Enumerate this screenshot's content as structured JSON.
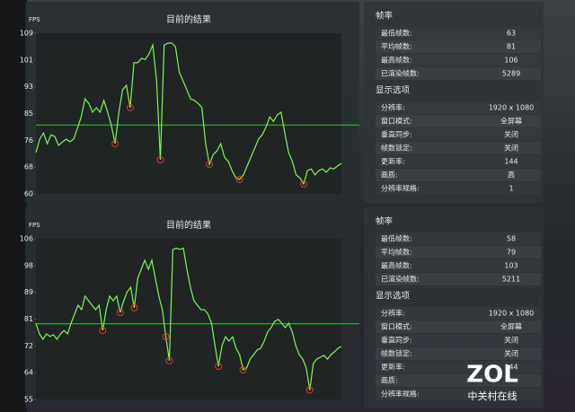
{
  "chart_data": [
    {
      "type": "line",
      "title": "目前的结果",
      "y_label": "FPS",
      "ylim": [
        60,
        109
      ],
      "yticks": [
        60,
        {
          "value": 68.17,
          "label": "68"
        },
        {
          "value": 76.33,
          "label": "76"
        },
        {
          "value": 84.5,
          "label": "85"
        },
        {
          "value": 92.67,
          "label": "93"
        },
        {
          "value": 100.83,
          "label": "101"
        },
        109
      ],
      "series": [
        {
          "color": "#86f25e",
          "values": [
            72.6,
            76.7,
            78.6,
            75.3,
            78,
            77.5,
            74.8,
            75.8,
            76.7,
            75.9,
            76.7,
            80,
            83.5,
            89,
            87.6,
            84.9,
            86.3,
            84.9,
            88.5,
            84.9,
            80.8,
            75.3,
            84.9,
            91.8,
            93.1,
            86.3,
            100,
            100,
            101.3,
            101,
            102.7,
            105.4,
            94.5,
            70.4,
            105.4,
            106,
            106,
            104.9,
            97.2,
            94.5,
            91.8,
            89,
            88.5,
            87.6,
            86.3,
            75.3,
            69,
            72,
            73.1,
            75.3,
            71.2,
            69.9,
            67.1,
            64.9,
            64.4,
            65.8,
            68.5,
            71.2,
            73.9,
            76.7,
            78,
            80.3,
            83.5,
            82.1,
            84.1,
            84.9,
            78.6,
            72.6,
            69.9,
            65.8,
            64.9,
            63,
            67.1,
            67.6,
            65.8,
            67.1,
            67.6,
            66.6,
            67.9,
            67.6,
            68.5,
            69.3
          ]
        }
      ],
      "marker_color": "#e0392b",
      "marker_indices": [
        21,
        25,
        33,
        46,
        54,
        71
      ],
      "average_line_color": "#3cc43c"
    },
    {
      "type": "line",
      "title": "目前的结果",
      "y_label": "FPS",
      "ylim": [
        55,
        106
      ],
      "yticks": [
        55,
        {
          "value": 63.5,
          "label": "64"
        },
        72,
        {
          "value": 80.5,
          "label": "81"
        },
        89,
        {
          "value": 97.5,
          "label": "98"
        },
        106
      ],
      "series": [
        {
          "color": "#86f25e",
          "values": [
            79.2,
            75.8,
            74.1,
            75.8,
            75,
            75.5,
            74.1,
            75.8,
            76.9,
            75.8,
            79.2,
            82.1,
            84.9,
            83.5,
            87.8,
            86.3,
            84.9,
            83.5,
            84.9,
            76.9,
            83.5,
            87.8,
            86.3,
            87.8,
            82.6,
            86.3,
            89.2,
            90.6,
            84.1,
            93.5,
            96.3,
            99.2,
            96.3,
            99.2,
            93.5,
            87.8,
            83.5,
            74.9,
            67.3,
            102.6,
            103,
            102.6,
            103,
            96.3,
            90.6,
            86.3,
            84.9,
            83.5,
            83.5,
            82.1,
            79.2,
            72.1,
            65.5,
            72.1,
            74.9,
            73.5,
            74.9,
            71.2,
            69.2,
            64.4,
            65,
            67.8,
            69.2,
            70.7,
            71.2,
            73.5,
            76.4,
            77.8,
            79.8,
            80.4,
            79.2,
            77.8,
            79.2,
            76.4,
            72.1,
            69.2,
            67.8,
            65,
            58,
            66.4,
            67.8,
            68.4,
            69,
            67.8,
            69.2,
            70.1,
            71.2,
            71.8
          ]
        }
      ],
      "marker_color": "#e0392b",
      "marker_indices": [
        19,
        24,
        28,
        37,
        38,
        52,
        59,
        78
      ],
      "average_line_color": "#3cc43c"
    }
  ],
  "panels": [
    {
      "sections": [
        {
          "title": "帧率",
          "rows": [
            {
              "label": "最低帧数:",
              "value": 63
            },
            {
              "label": "平均帧数:",
              "value": 81
            },
            {
              "label": "最高帧数:",
              "value": 106
            },
            {
              "label": "已渲染帧数:",
              "value": 5289
            }
          ]
        },
        {
          "title": "显示选项",
          "rows": [
            {
              "label": "分辨率:",
              "value": "1920 x 1080"
            },
            {
              "label": "窗口模式:",
              "value": "全屏幕"
            },
            {
              "label": "垂直同步:",
              "value": "关闭"
            },
            {
              "label": "帧数锁定:",
              "value": "关闭"
            },
            {
              "label": "更新率:",
              "value": 144
            },
            {
              "label": "画质:",
              "value": "高"
            },
            {
              "label": "分辨率规格:",
              "value": 1
            }
          ]
        }
      ]
    },
    {
      "sections": [
        {
          "title": "帧率",
          "rows": [
            {
              "label": "最低帧数:",
              "value": 58
            },
            {
              "label": "平均帧数:",
              "value": 79
            },
            {
              "label": "最高帧数:",
              "value": 103
            },
            {
              "label": "已渲染帧数:",
              "value": 5211
            }
          ]
        },
        {
          "title": "显示选项",
          "rows": [
            {
              "label": "分辨率:",
              "value": "1920 x 1080"
            },
            {
              "label": "窗口模式:",
              "value": "全屏幕"
            },
            {
              "label": "垂直同步:",
              "value": "关闭"
            },
            {
              "label": "帧数锁定:",
              "value": "关闭"
            },
            {
              "label": "更新率:",
              "value": 144
            },
            {
              "label": "画质:"
            },
            {
              "label": "分辨率规格:"
            }
          ]
        }
      ]
    }
  ],
  "watermark": {
    "logo": "ZOL",
    "text": "中关村在线"
  }
}
